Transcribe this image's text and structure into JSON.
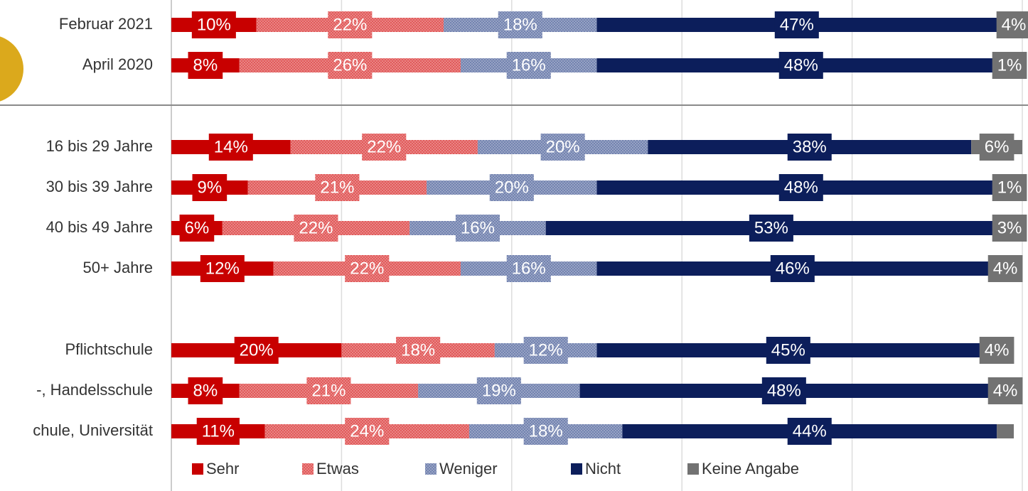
{
  "chart_data": {
    "type": "stacked-barh",
    "categories": [
      "Februar 2021",
      "April 2020",
      "16 bis 29 Jahre",
      "30 bis 39 Jahre",
      "40 bis 49 Jahre",
      "50+ Jahre",
      "Pflichtschule",
      "-, Handelsschule",
      "chule, Universität"
    ],
    "series": [
      {
        "name": "Sehr",
        "color": "#c80000",
        "hatched": false,
        "values": [
          10,
          8,
          14,
          9,
          6,
          12,
          20,
          8,
          11
        ],
        "value_labels": [
          "10%",
          "8%",
          "14%",
          "9%",
          "6%",
          "12%",
          "20%",
          "8%",
          "11%"
        ]
      },
      {
        "name": "Etwas",
        "color": "#de4a4a",
        "hatched": true,
        "values": [
          22,
          26,
          22,
          21,
          22,
          22,
          18,
          21,
          24
        ],
        "value_labels": [
          "22%",
          "26%",
          "22%",
          "21%",
          "22%",
          "22%",
          "18%",
          "21%",
          "24%"
        ]
      },
      {
        "name": "Weniger",
        "color": "#6577a8",
        "hatched": true,
        "values": [
          18,
          16,
          20,
          20,
          16,
          16,
          12,
          19,
          18
        ],
        "value_labels": [
          "18%",
          "16%",
          "20%",
          "20%",
          "16%",
          "16%",
          "12%",
          "19%",
          "18%"
        ]
      },
      {
        "name": "Nicht",
        "color": "#0c1e5b",
        "hatched": false,
        "values": [
          47,
          48,
          38,
          48,
          53,
          46,
          45,
          48,
          44
        ],
        "value_labels": [
          "47%",
          "48%",
          "38%",
          "48%",
          "53%",
          "46%",
          "45%",
          "48%",
          "44%"
        ]
      },
      {
        "name": "Keine Angabe",
        "color": "#727272",
        "hatched": false,
        "values": [
          4,
          1,
          6,
          1,
          3,
          4,
          4,
          4,
          2
        ],
        "value_labels": [
          "4%",
          "1%",
          "6%",
          "1%",
          "3%",
          "4%",
          "4%",
          "4%",
          null
        ]
      }
    ],
    "xlim": [
      0,
      100
    ],
    "xticks": [
      0,
      20,
      40,
      60,
      80,
      100
    ],
    "grid": true,
    "legend": "bottom"
  }
}
